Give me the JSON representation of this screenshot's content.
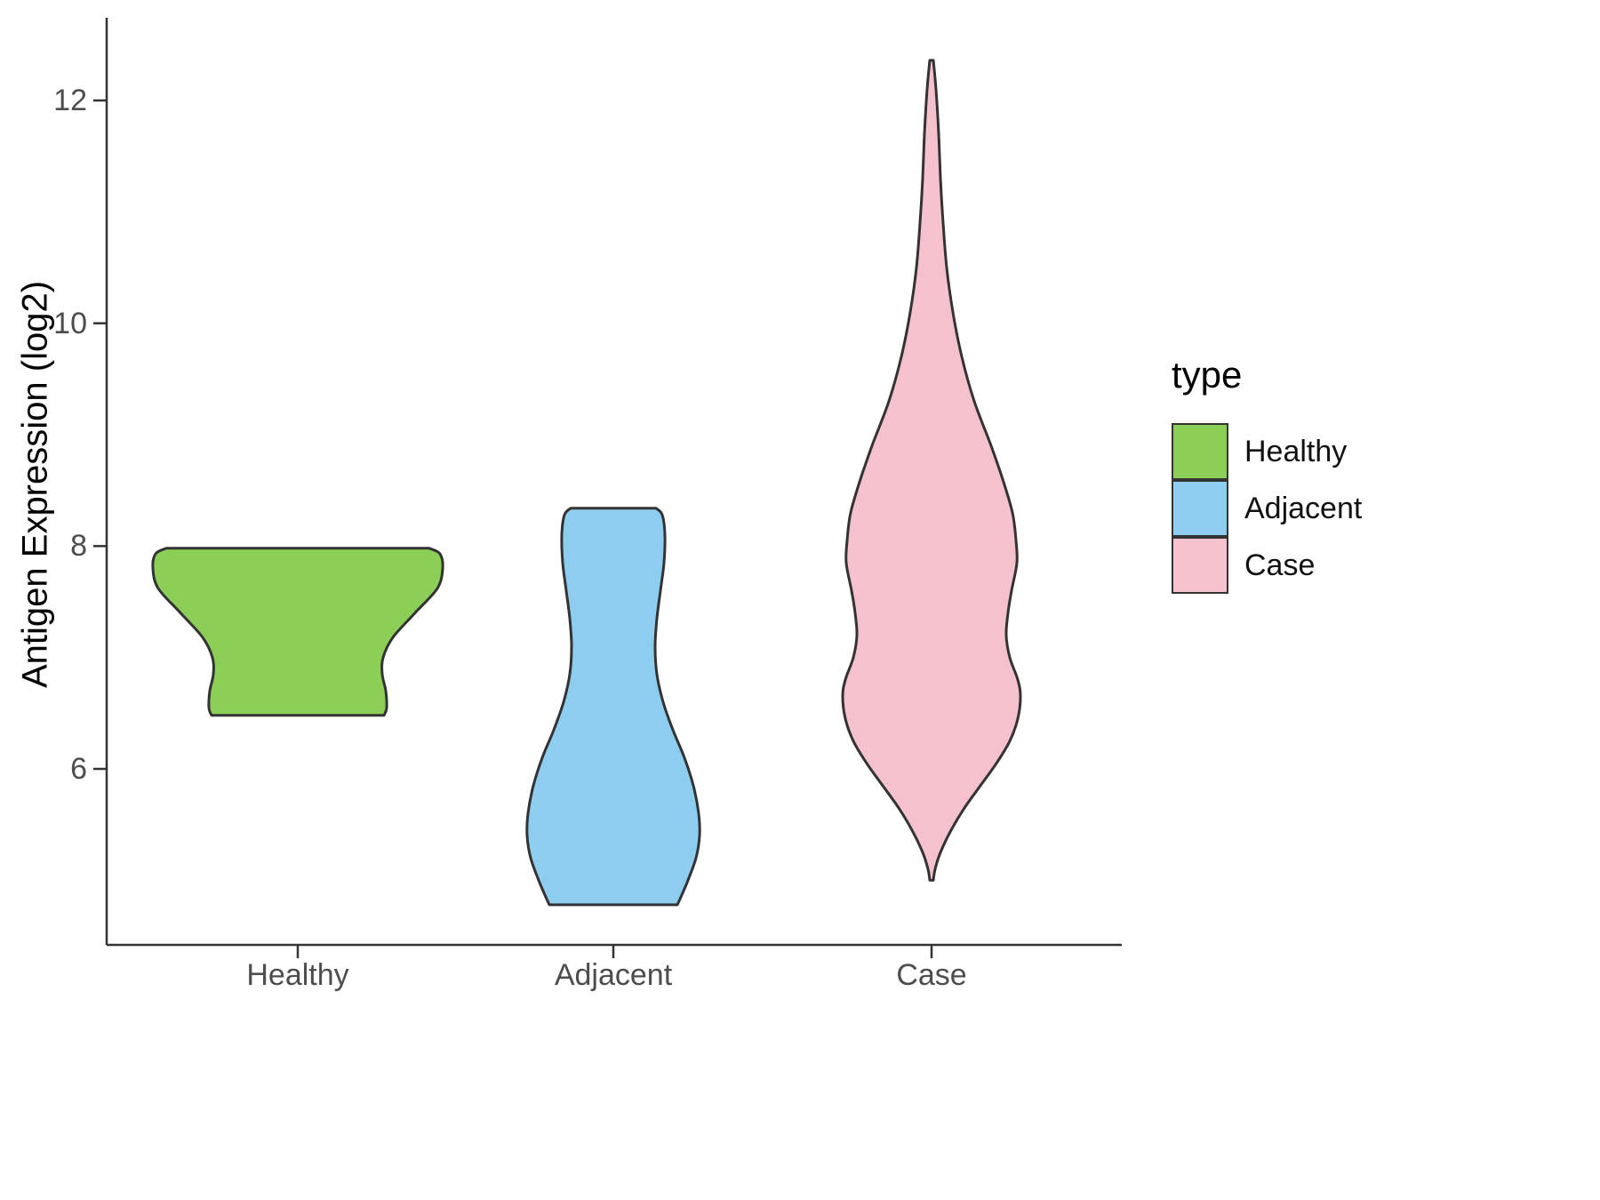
{
  "chart_data": {
    "type": "violin",
    "title": "",
    "xlabel": "",
    "ylabel": "Antigen Expression (log2)",
    "categories": [
      "Healthy",
      "Adjacent",
      "Case"
    ],
    "yticks": [
      12,
      10,
      8,
      6
    ],
    "ylim": [
      4.4,
      12.75
    ],
    "grid": false,
    "axis_color": "#333333",
    "stroke_color": "#333333",
    "tick_label_color": "#4d4d4d",
    "legend_position": "right",
    "legend": {
      "title": "type",
      "entries": [
        {
          "label": "Healthy",
          "color": "#8CCF56"
        },
        {
          "label": "Adjacent",
          "color": "#8DCEF0"
        },
        {
          "label": "Case",
          "color": "#F5C1CC"
        }
      ]
    },
    "violins": [
      {
        "name": "Healthy",
        "fill": "#8CCF56",
        "profile": [
          [
            7.98,
            148
          ],
          [
            7.93,
            160
          ],
          [
            7.8,
            163
          ],
          [
            7.62,
            157
          ],
          [
            7.4,
            132
          ],
          [
            7.18,
            107
          ],
          [
            7.0,
            96
          ],
          [
            6.85,
            95
          ],
          [
            6.7,
            99
          ],
          [
            6.55,
            100
          ],
          [
            6.48,
            97
          ]
        ]
      },
      {
        "name": "Adjacent",
        "fill": "#8DCEF0",
        "profile": [
          [
            8.34,
            48
          ],
          [
            8.28,
            55
          ],
          [
            8.1,
            58
          ],
          [
            7.85,
            57
          ],
          [
            7.6,
            53
          ],
          [
            7.35,
            49
          ],
          [
            7.1,
            47
          ],
          [
            6.85,
            49
          ],
          [
            6.6,
            56
          ],
          [
            6.35,
            67
          ],
          [
            6.1,
            80
          ],
          [
            5.85,
            90
          ],
          [
            5.6,
            96
          ],
          [
            5.4,
            97
          ],
          [
            5.2,
            93
          ],
          [
            5.0,
            84
          ],
          [
            4.85,
            76
          ],
          [
            4.78,
            72
          ]
        ]
      },
      {
        "name": "Case",
        "fill": "#F5C1CC",
        "profile": [
          [
            12.36,
            2
          ],
          [
            12.1,
            5
          ],
          [
            11.7,
            8
          ],
          [
            11.3,
            10
          ],
          [
            10.9,
            13
          ],
          [
            10.5,
            17
          ],
          [
            10.1,
            24
          ],
          [
            9.7,
            34
          ],
          [
            9.3,
            48
          ],
          [
            8.9,
            67
          ],
          [
            8.6,
            80
          ],
          [
            8.3,
            91
          ],
          [
            8.05,
            95
          ],
          [
            7.85,
            96
          ],
          [
            7.6,
            90
          ],
          [
            7.4,
            86
          ],
          [
            7.2,
            84
          ],
          [
            7.0,
            88
          ],
          [
            6.8,
            97
          ],
          [
            6.65,
            100
          ],
          [
            6.45,
            97
          ],
          [
            6.25,
            88
          ],
          [
            6.05,
            73
          ],
          [
            5.85,
            55
          ],
          [
            5.65,
            37
          ],
          [
            5.45,
            22
          ],
          [
            5.25,
            10
          ],
          [
            5.1,
            4
          ],
          [
            5.0,
            2
          ]
        ]
      }
    ]
  }
}
